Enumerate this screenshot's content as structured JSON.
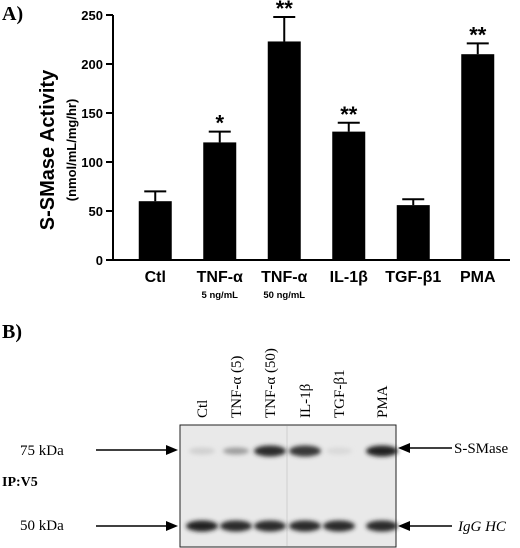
{
  "panel_a_label": "A)",
  "panel_b_label": "B)",
  "chart_data": {
    "type": "bar",
    "ylabel": "S-SMase Activity",
    "ylabel_unit": "(nmol/mL/mg/hr)",
    "ylim": [
      0,
      250
    ],
    "yticks": [
      "0",
      "50",
      "100",
      "150",
      "200",
      "250"
    ],
    "categories": [
      "Ctl",
      "TNF-α",
      "TNF-α",
      "IL-1β",
      "TGF-β1",
      "PMA"
    ],
    "category_sublabels": [
      "",
      "5 ng/mL",
      "50 ng/mL",
      "",
      "",
      ""
    ],
    "values": [
      60,
      120,
      223,
      131,
      56,
      210
    ],
    "errors": [
      10,
      11,
      25,
      9,
      6,
      11
    ],
    "significance": [
      "",
      "*",
      "**",
      "**",
      "",
      "**"
    ],
    "bar_color": "#000000",
    "grid": false
  },
  "blot": {
    "lanes": [
      "Ctl",
      "TNF-α (5)",
      "TNF-α (50)",
      "IL-1β",
      "TGF-β1",
      "PMA"
    ],
    "marker_75": "75 kDa",
    "marker_50": "50 kDa",
    "band_top": "S-SMase",
    "band_bottom": "IgG HC",
    "ip_label": "IP:V5",
    "band_top_intensity": [
      0.12,
      0.35,
      0.85,
      0.8,
      0.08,
      0.9
    ],
    "band_bottom_intensity": [
      0.9,
      0.85,
      0.85,
      0.85,
      0.85,
      0.85
    ]
  }
}
